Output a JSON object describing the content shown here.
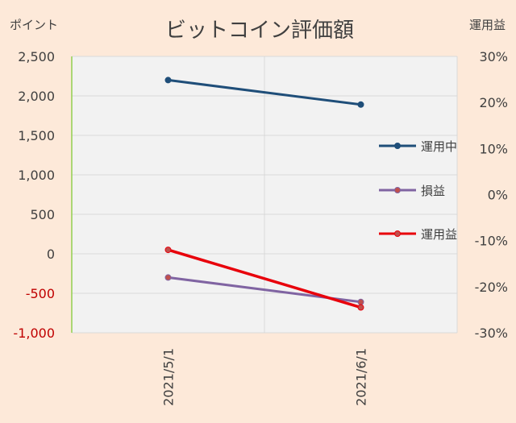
{
  "chart_data": {
    "type": "line",
    "title": "ビットコイン評価額",
    "ylabel": "ポイント",
    "y2label": "運用益",
    "xlabel": "",
    "categories": [
      "2021/5/1",
      "2021/6/1"
    ],
    "ylim": [
      -1000,
      2500
    ],
    "yticks": [
      2500,
      2000,
      1500,
      1000,
      500,
      0,
      -500,
      -1000
    ],
    "ytick_labels": [
      "2,500",
      "2,000",
      "1,500",
      "1,000",
      "500",
      "0",
      "-500",
      "-1,000"
    ],
    "y2lim": [
      -0.3,
      0.3
    ],
    "y2ticks": [
      0.3,
      0.2,
      0.1,
      0.0,
      -0.1,
      -0.2,
      -0.3
    ],
    "y2tick_labels": [
      "30%",
      "20%",
      "10%",
      "0%",
      "-10%",
      "-20%",
      "-30%"
    ],
    "grid": true,
    "legend_position": "right",
    "series": [
      {
        "name": "運用中",
        "axis": "left",
        "values": [
          2200,
          1890
        ],
        "color": "#1f4e79"
      },
      {
        "name": "損益",
        "axis": "left",
        "values": [
          -300,
          -610
        ],
        "color": "#8064a2"
      },
      {
        "name": "運用益",
        "axis": "right",
        "values": [
          -0.12,
          -0.245
        ],
        "color": "#e8000b"
      }
    ]
  },
  "colors": {
    "background": "#fde9d9",
    "plot_area": "#f2f2f2",
    "gridline": "#d9d9d9",
    "negative_tick": "#c00000",
    "left_axis_line": "#92d050",
    "marker_fill_red": "#c0504d"
  }
}
